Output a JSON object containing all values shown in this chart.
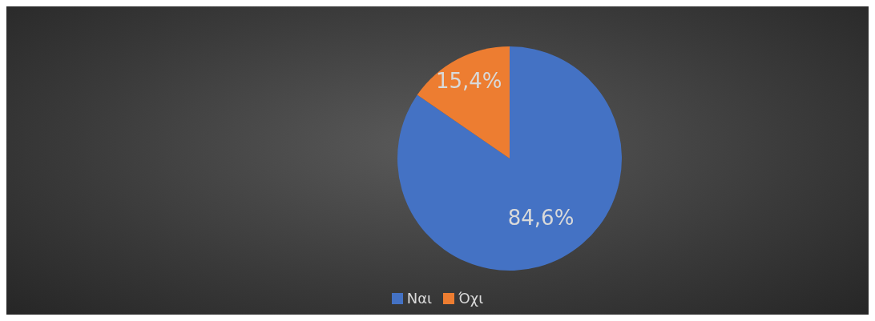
{
  "chart_data": {
    "type": "pie",
    "categories": [
      "Ναι",
      "Όχι"
    ],
    "values": [
      84.6,
      15.4
    ],
    "colors": [
      "#4472c4",
      "#ed7d31"
    ],
    "value_labels": [
      "84,6%",
      "15,4%"
    ],
    "legend": "bottom"
  }
}
